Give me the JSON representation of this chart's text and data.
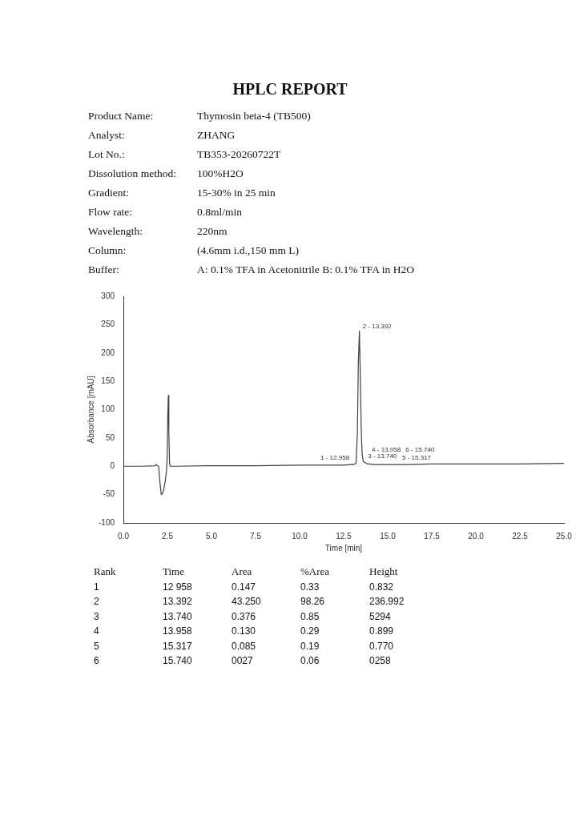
{
  "chart_data": {
    "type": "line",
    "title": "HPLC REPORT",
    "subtitle": "Product Name:\tThymosin beta-4 (TB500)\nAnalyst:\tZHANG\nLot No.:\tTB353-20260722T\nDissolution method:\t100%H2O\nGradient:\t15-30% in 25 min\nFlow rate:\t0.8ml/min\nWavelength:\t220nm\nColumn:\t(4.6mm i.d.,150 mm L)\nBuffer:\tA: 0.1% TFA in Acetonitrile      B: 0.1% TFA in H2O",
    "xlabel": "Time [min]",
    "ylabel": "Absorbance [mAU]",
    "xlim": [
      0,
      25
    ],
    "ylim": [
      -100,
      300
    ],
    "xticks": [
      {
        "value": 0,
        "label": "0.0"
      },
      {
        "value": 2.5,
        "label": "2.5"
      },
      {
        "value": 5,
        "label": "5.0"
      },
      {
        "value": 7.5,
        "label": "7.5"
      },
      {
        "value": 10,
        "label": "10.0"
      },
      {
        "value": 12.5,
        "label": "12.5"
      },
      {
        "value": 15,
        "label": "15.0"
      },
      {
        "value": 17.5,
        "label": "17.5"
      },
      {
        "value": 20,
        "label": "20.0"
      },
      {
        "value": 22.5,
        "label": "22.5"
      },
      {
        "value": 25,
        "label": "25.0"
      }
    ],
    "yticks": [
      -100,
      -50,
      0,
      50,
      100,
      150,
      200,
      250,
      300
    ],
    "grid": false,
    "legend": false,
    "marker": "none",
    "line_style": "solid",
    "series": [
      {
        "color": "#404040",
        "x": [
          0,
          1,
          1.8,
          1.85,
          1.92,
          2.0,
          2.08,
          2.15,
          2.22,
          2.3,
          2.38,
          2.44,
          2.48,
          2.52,
          2.55,
          2.58,
          2.62,
          2.66,
          3,
          5,
          7.5,
          10,
          12.5,
          12.9,
          12.958,
          13.05,
          13.2,
          13.28,
          13.33,
          13.392,
          13.45,
          13.5,
          13.55,
          13.62,
          13.74,
          13.85,
          13.958,
          14.2,
          15,
          15.317,
          15.5,
          15.74,
          16,
          17.5,
          20,
          22.5,
          25
        ],
        "values": [
          0,
          0,
          1,
          3,
          1,
          0,
          -30,
          -50,
          -48,
          -40,
          -25,
          -10,
          10,
          90,
          125,
          60,
          5,
          0,
          0,
          1,
          1,
          2,
          2,
          3,
          3,
          3,
          5,
          60,
          180,
          239,
          150,
          60,
          20,
          8,
          6,
          4,
          4,
          3,
          3,
          3,
          3,
          3,
          3,
          4,
          4,
          4,
          5
        ]
      }
    ],
    "annotations": [
      {
        "text": "1 - 12.958",
        "x": 12.958,
        "y": 3.1
      },
      {
        "text": "2 - 13.392",
        "x": 13.392,
        "y": 239
      },
      {
        "text": "3 - 13.740",
        "x": 13.74,
        "y": 6
      },
      {
        "text": "4 - 13.958",
        "x": 13.958,
        "y": 4
      },
      {
        "text": "5 - 15.317",
        "x": 15.317,
        "y": 3
      },
      {
        "text": "6 - 15.740",
        "x": 15.74,
        "y": 3
      },
      "Rank\tTime\tArea\t%Area\tHeight",
      "1\t12 958\t0.147\t0.33\t0.832",
      "2\t13.392\t43.250\t98.26\t236.992",
      "3\t13.740\t0.376\t0.85\t5294",
      "4\t13.958\t0.130\t0.29\t0.899",
      "5\t15.317\t0.085\t0.19\t0.770",
      "6\t15.740\t0027\t0.06\t0258"
    ]
  }
}
